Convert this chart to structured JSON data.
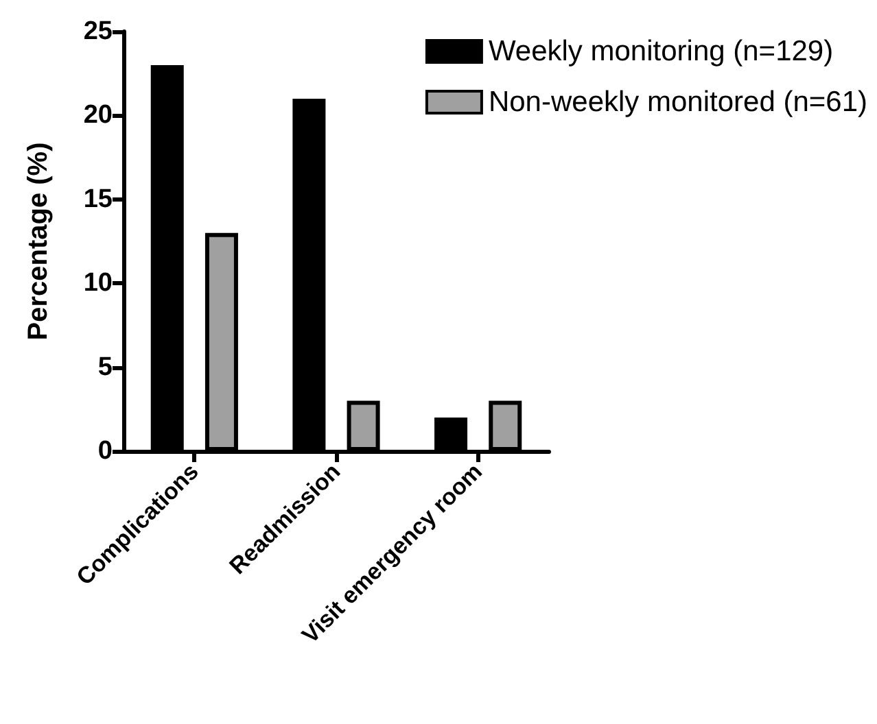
{
  "chart_data": {
    "type": "bar",
    "ylabel": "Percentage (%)",
    "categories": [
      "Complications",
      "Readmission",
      "Visit emergency room"
    ],
    "series": [
      {
        "name": "Weekly monitoring (n=129)",
        "color": "#000000",
        "values": [
          23,
          21,
          2
        ]
      },
      {
        "name": "Non-weekly monitored (n=61)",
        "color": "#a0a0a0",
        "values": [
          13,
          3,
          3
        ]
      }
    ],
    "ylim": [
      0,
      25
    ],
    "yticks": [
      0,
      5,
      10,
      15,
      20,
      25
    ],
    "grid": false,
    "legend": "top right"
  }
}
